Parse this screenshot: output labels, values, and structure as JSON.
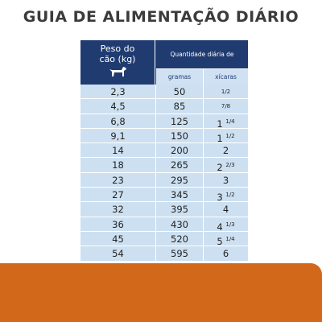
{
  "header": {
    "title": "GUIA DE ALIMENTAÇÃO DIÁRIO"
  },
  "table": {
    "columns": {
      "weight": "Peso do cão (kg)",
      "quantity": "Quantidade diária de alimento",
      "grams": "gramas",
      "cups": "xícaras"
    },
    "rows": [
      {
        "weight": "2,3",
        "grams": "50",
        "cups": {
          "fraction": "1/2"
        }
      },
      {
        "weight": "4,5",
        "grams": "85",
        "cups": {
          "fraction": "7/8"
        }
      },
      {
        "weight": "6,8",
        "grams": "125",
        "cups": {
          "whole": "1",
          "fraction": "1/4"
        }
      },
      {
        "weight": "9,1",
        "grams": "150",
        "cups": {
          "whole": "1",
          "fraction": "1/2"
        }
      },
      {
        "weight": "14",
        "grams": "200",
        "cups": {
          "whole": "2"
        }
      },
      {
        "weight": "18",
        "grams": "265",
        "cups": {
          "whole": "2",
          "fraction": "2/3"
        }
      },
      {
        "weight": "23",
        "grams": "295",
        "cups": {
          "whole": "3"
        }
      },
      {
        "weight": "27",
        "grams": "345",
        "cups": {
          "whole": "3",
          "fraction": "1/2"
        }
      },
      {
        "weight": "32",
        "grams": "395",
        "cups": {
          "whole": "4"
        }
      },
      {
        "weight": "36",
        "grams": "430",
        "cups": {
          "whole": "4",
          "fraction": "1/3"
        }
      },
      {
        "weight": "45",
        "grams": "520",
        "cups": {
          "whole": "5",
          "fraction": "1/4"
        }
      },
      {
        "weight": "54",
        "grams": "595",
        "cups": {
          "whole": "6"
        }
      }
    ]
  }
}
